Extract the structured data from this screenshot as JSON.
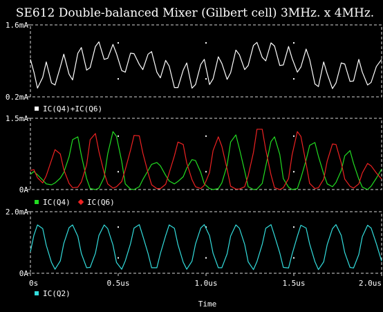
{
  "title": "SE612 Double-balanced Mixer (Gilbert cell) 3MHz. x 4MHz.",
  "xlabel": "Time",
  "colors": {
    "background": "#000000",
    "axis": "#d8d8d8",
    "sum": "#ffffff",
    "q4": "#22dd22",
    "q6": "#ee2222",
    "q2": "#33dddd"
  },
  "chart_data": [
    {
      "type": "line",
      "title": "",
      "ylabel": "",
      "ylim": [
        0.2,
        1.6
      ],
      "yticks": [
        "0.2mA",
        "1.6mA"
      ],
      "xlim": [
        0,
        2.0
      ],
      "x_unit": "us",
      "grid": false,
      "legend": "below",
      "series": [
        {
          "name": "IC(Q4)+IC(Q6)",
          "color_key": "sum",
          "marker": "square",
          "y_unit": "mA",
          "x": [
            0,
            0.02,
            0.04,
            0.07,
            0.09,
            0.12,
            0.14,
            0.17,
            0.19,
            0.22,
            0.24,
            0.27,
            0.29,
            0.32,
            0.34,
            0.37,
            0.39,
            0.42,
            0.44,
            0.47,
            0.49,
            0.52,
            0.54,
            0.57,
            0.59,
            0.62,
            0.64,
            0.67,
            0.69,
            0.72,
            0.74,
            0.77,
            0.79,
            0.82,
            0.84,
            0.87,
            0.89,
            0.92,
            0.94,
            0.97,
            0.99,
            1.02,
            1.04,
            1.07,
            1.09,
            1.12,
            1.14,
            1.17,
            1.19,
            1.22,
            1.24,
            1.27,
            1.29,
            1.32,
            1.34,
            1.37,
            1.39,
            1.42,
            1.44,
            1.47,
            1.49,
            1.52,
            1.54,
            1.57,
            1.59,
            1.62,
            1.64,
            1.67,
            1.69,
            1.72,
            1.74,
            1.77,
            1.79,
            1.82,
            1.84,
            1.87,
            1.89,
            1.92,
            1.94,
            1.97,
            2.0
          ],
          "y": [
            0.93,
            0.68,
            0.37,
            0.58,
            0.88,
            0.47,
            0.43,
            0.78,
            1.03,
            0.64,
            0.53,
            1.05,
            1.16,
            0.72,
            0.77,
            1.18,
            1.27,
            0.93,
            0.95,
            1.22,
            1.04,
            0.71,
            0.68,
            1.05,
            1.04,
            0.83,
            0.73,
            1.03,
            1.08,
            0.68,
            0.57,
            0.91,
            0.8,
            0.38,
            0.38,
            0.72,
            0.86,
            0.37,
            0.44,
            0.83,
            0.93,
            0.44,
            0.55,
            0.98,
            0.85,
            0.54,
            0.67,
            1.11,
            1.02,
            0.73,
            0.81,
            1.2,
            1.26,
            0.97,
            0.9,
            1.25,
            1.19,
            0.81,
            0.82,
            1.18,
            0.95,
            0.68,
            0.78,
            1.13,
            0.93,
            0.45,
            0.4,
            0.88,
            0.65,
            0.36,
            0.47,
            0.86,
            0.84,
            0.5,
            0.51,
            0.93,
            0.68,
            0.43,
            0.48,
            0.79,
            0.93
          ]
        }
      ]
    },
    {
      "type": "line",
      "title": "",
      "ylabel": "",
      "ylim": [
        0,
        1.5
      ],
      "yticks": [
        "0A",
        "1.5mA"
      ],
      "xlim": [
        0,
        2.0
      ],
      "x_unit": "us",
      "grid": false,
      "legend": "below",
      "series": [
        {
          "name": "IC(Q4)",
          "color_key": "q4",
          "marker": "square",
          "y_unit": "mA",
          "x": [
            0,
            0.02,
            0.04,
            0.07,
            0.09,
            0.12,
            0.14,
            0.17,
            0.19,
            0.22,
            0.24,
            0.27,
            0.29,
            0.32,
            0.34,
            0.37,
            0.39,
            0.42,
            0.44,
            0.47,
            0.49,
            0.52,
            0.54,
            0.57,
            0.59,
            0.62,
            0.64,
            0.67,
            0.69,
            0.72,
            0.74,
            0.77,
            0.79,
            0.82,
            0.84,
            0.87,
            0.89,
            0.92,
            0.94,
            0.97,
            0.99,
            1.02,
            1.04,
            1.07,
            1.09,
            1.12,
            1.14,
            1.17,
            1.19,
            1.22,
            1.24,
            1.27,
            1.29,
            1.32,
            1.34,
            1.37,
            1.39,
            1.42,
            1.44,
            1.47,
            1.49,
            1.52,
            1.54,
            1.57,
            1.59,
            1.62,
            1.64,
            1.67,
            1.69,
            1.72,
            1.74,
            1.77,
            1.79,
            1.82,
            1.84,
            1.87,
            1.89,
            1.92,
            1.94,
            1.97,
            2.0
          ],
          "y": [
            0.32,
            0.38,
            0.31,
            0.2,
            0.12,
            0.1,
            0.14,
            0.24,
            0.36,
            0.69,
            1.05,
            1.11,
            0.72,
            0.23,
            0.02,
            0.0,
            0.03,
            0.26,
            0.75,
            1.22,
            1.12,
            0.59,
            0.12,
            0.01,
            0.0,
            0.06,
            0.21,
            0.4,
            0.53,
            0.57,
            0.5,
            0.3,
            0.18,
            0.12,
            0.17,
            0.27,
            0.45,
            0.63,
            0.61,
            0.36,
            0.12,
            0.02,
            0.0,
            0.02,
            0.14,
            0.51,
            1.0,
            1.15,
            0.86,
            0.39,
            0.06,
            0.0,
            0.01,
            0.13,
            0.49,
            1.01,
            1.11,
            0.74,
            0.23,
            0.05,
            0.0,
            0.02,
            0.24,
            0.62,
            0.93,
            0.99,
            0.7,
            0.33,
            0.12,
            0.06,
            0.15,
            0.4,
            0.71,
            0.82,
            0.55,
            0.22,
            0.05,
            0.0,
            0.07,
            0.24,
            0.43
          ]
        },
        {
          "name": "IC(Q6)",
          "color_key": "q6",
          "marker": "diamond",
          "y_unit": "mA",
          "x": [
            0,
            0.02,
            0.04,
            0.07,
            0.09,
            0.12,
            0.14,
            0.17,
            0.19,
            0.22,
            0.24,
            0.27,
            0.29,
            0.32,
            0.34,
            0.37,
            0.39,
            0.42,
            0.44,
            0.47,
            0.49,
            0.52,
            0.54,
            0.57,
            0.59,
            0.62,
            0.64,
            0.67,
            0.69,
            0.72,
            0.74,
            0.77,
            0.79,
            0.82,
            0.84,
            0.87,
            0.89,
            0.92,
            0.94,
            0.97,
            0.99,
            1.02,
            1.04,
            1.07,
            1.09,
            1.12,
            1.14,
            1.17,
            1.19,
            1.22,
            1.24,
            1.27,
            1.29,
            1.32,
            1.34,
            1.37,
            1.39,
            1.42,
            1.44,
            1.47,
            1.49,
            1.52,
            1.54,
            1.57,
            1.59,
            1.62,
            1.64,
            1.67,
            1.69,
            1.72,
            1.74,
            1.77,
            1.79,
            1.82,
            1.84,
            1.87,
            1.89,
            1.92,
            1.94,
            1.97,
            2.0
          ],
          "y": [
            0.4,
            0.42,
            0.25,
            0.14,
            0.29,
            0.62,
            0.84,
            0.75,
            0.42,
            0.13,
            0.04,
            0.05,
            0.16,
            0.52,
            1.05,
            1.18,
            0.8,
            0.35,
            0.12,
            0.03,
            0.06,
            0.17,
            0.42,
            0.83,
            1.14,
            1.13,
            0.77,
            0.35,
            0.1,
            0.02,
            0.02,
            0.11,
            0.35,
            0.71,
            1.0,
            0.95,
            0.56,
            0.21,
            0.06,
            0.02,
            0.09,
            0.36,
            0.82,
            1.11,
            0.91,
            0.43,
            0.07,
            0.01,
            0.01,
            0.06,
            0.29,
            0.78,
            1.27,
            1.27,
            0.84,
            0.31,
            0.04,
            0.0,
            0.04,
            0.23,
            0.73,
            1.22,
            1.12,
            0.54,
            0.13,
            0.02,
            0.04,
            0.22,
            0.6,
            0.96,
            0.95,
            0.56,
            0.22,
            0.07,
            0.03,
            0.12,
            0.35,
            0.55,
            0.5,
            0.35,
            0.22
          ]
        }
      ]
    },
    {
      "type": "line",
      "title": "",
      "ylabel": "",
      "ylim": [
        0,
        2.0
      ],
      "yticks": [
        "0A",
        "2.0mA"
      ],
      "xlim": [
        0,
        2.0
      ],
      "xticks": [
        "0s",
        "0.5us",
        "1.0us",
        "1.5us",
        "2.0us"
      ],
      "x_unit": "us",
      "grid": false,
      "legend": "below",
      "series": [
        {
          "name": "IC(Q2)",
          "color_key": "q2",
          "marker": "square",
          "y_unit": "mA",
          "x": [
            0,
            0.02,
            0.04,
            0.07,
            0.09,
            0.12,
            0.14,
            0.17,
            0.19,
            0.22,
            0.24,
            0.27,
            0.29,
            0.32,
            0.34,
            0.37,
            0.39,
            0.42,
            0.44,
            0.47,
            0.49,
            0.52,
            0.54,
            0.57,
            0.59,
            0.62,
            0.64,
            0.67,
            0.69,
            0.72,
            0.74,
            0.77,
            0.79,
            0.82,
            0.84,
            0.87,
            0.89,
            0.92,
            0.94,
            0.97,
            0.99,
            1.02,
            1.04,
            1.07,
            1.09,
            1.12,
            1.14,
            1.17,
            1.19,
            1.22,
            1.24,
            1.27,
            1.29,
            1.32,
            1.34,
            1.37,
            1.39,
            1.42,
            1.44,
            1.47,
            1.49,
            1.52,
            1.54,
            1.57,
            1.59,
            1.62,
            1.64,
            1.67,
            1.69,
            1.72,
            1.74,
            1.77,
            1.79,
            1.82,
            1.84,
            1.87,
            1.89,
            1.92,
            1.94,
            1.97,
            2.0
          ],
          "y": [
            0.7,
            1.24,
            1.57,
            1.45,
            0.91,
            0.35,
            0.13,
            0.4,
            0.97,
            1.48,
            1.57,
            1.2,
            0.64,
            0.18,
            0.19,
            0.65,
            1.23,
            1.57,
            1.45,
            0.92,
            0.35,
            0.13,
            0.4,
            0.96,
            1.47,
            1.58,
            1.21,
            0.64,
            0.18,
            0.18,
            0.64,
            1.22,
            1.57,
            1.46,
            0.93,
            0.36,
            0.13,
            0.39,
            0.95,
            1.47,
            1.58,
            1.22,
            0.65,
            0.18,
            0.18,
            0.63,
            1.21,
            1.57,
            1.46,
            0.94,
            0.37,
            0.12,
            0.38,
            0.94,
            1.46,
            1.58,
            1.22,
            0.66,
            0.19,
            0.17,
            0.62,
            1.2,
            1.56,
            1.47,
            0.95,
            0.38,
            0.12,
            0.37,
            0.93,
            1.45,
            1.58,
            1.23,
            0.67,
            0.19,
            0.17,
            0.61,
            1.19,
            1.56,
            1.47,
            0.96,
            0.39
          ]
        }
      ]
    }
  ]
}
